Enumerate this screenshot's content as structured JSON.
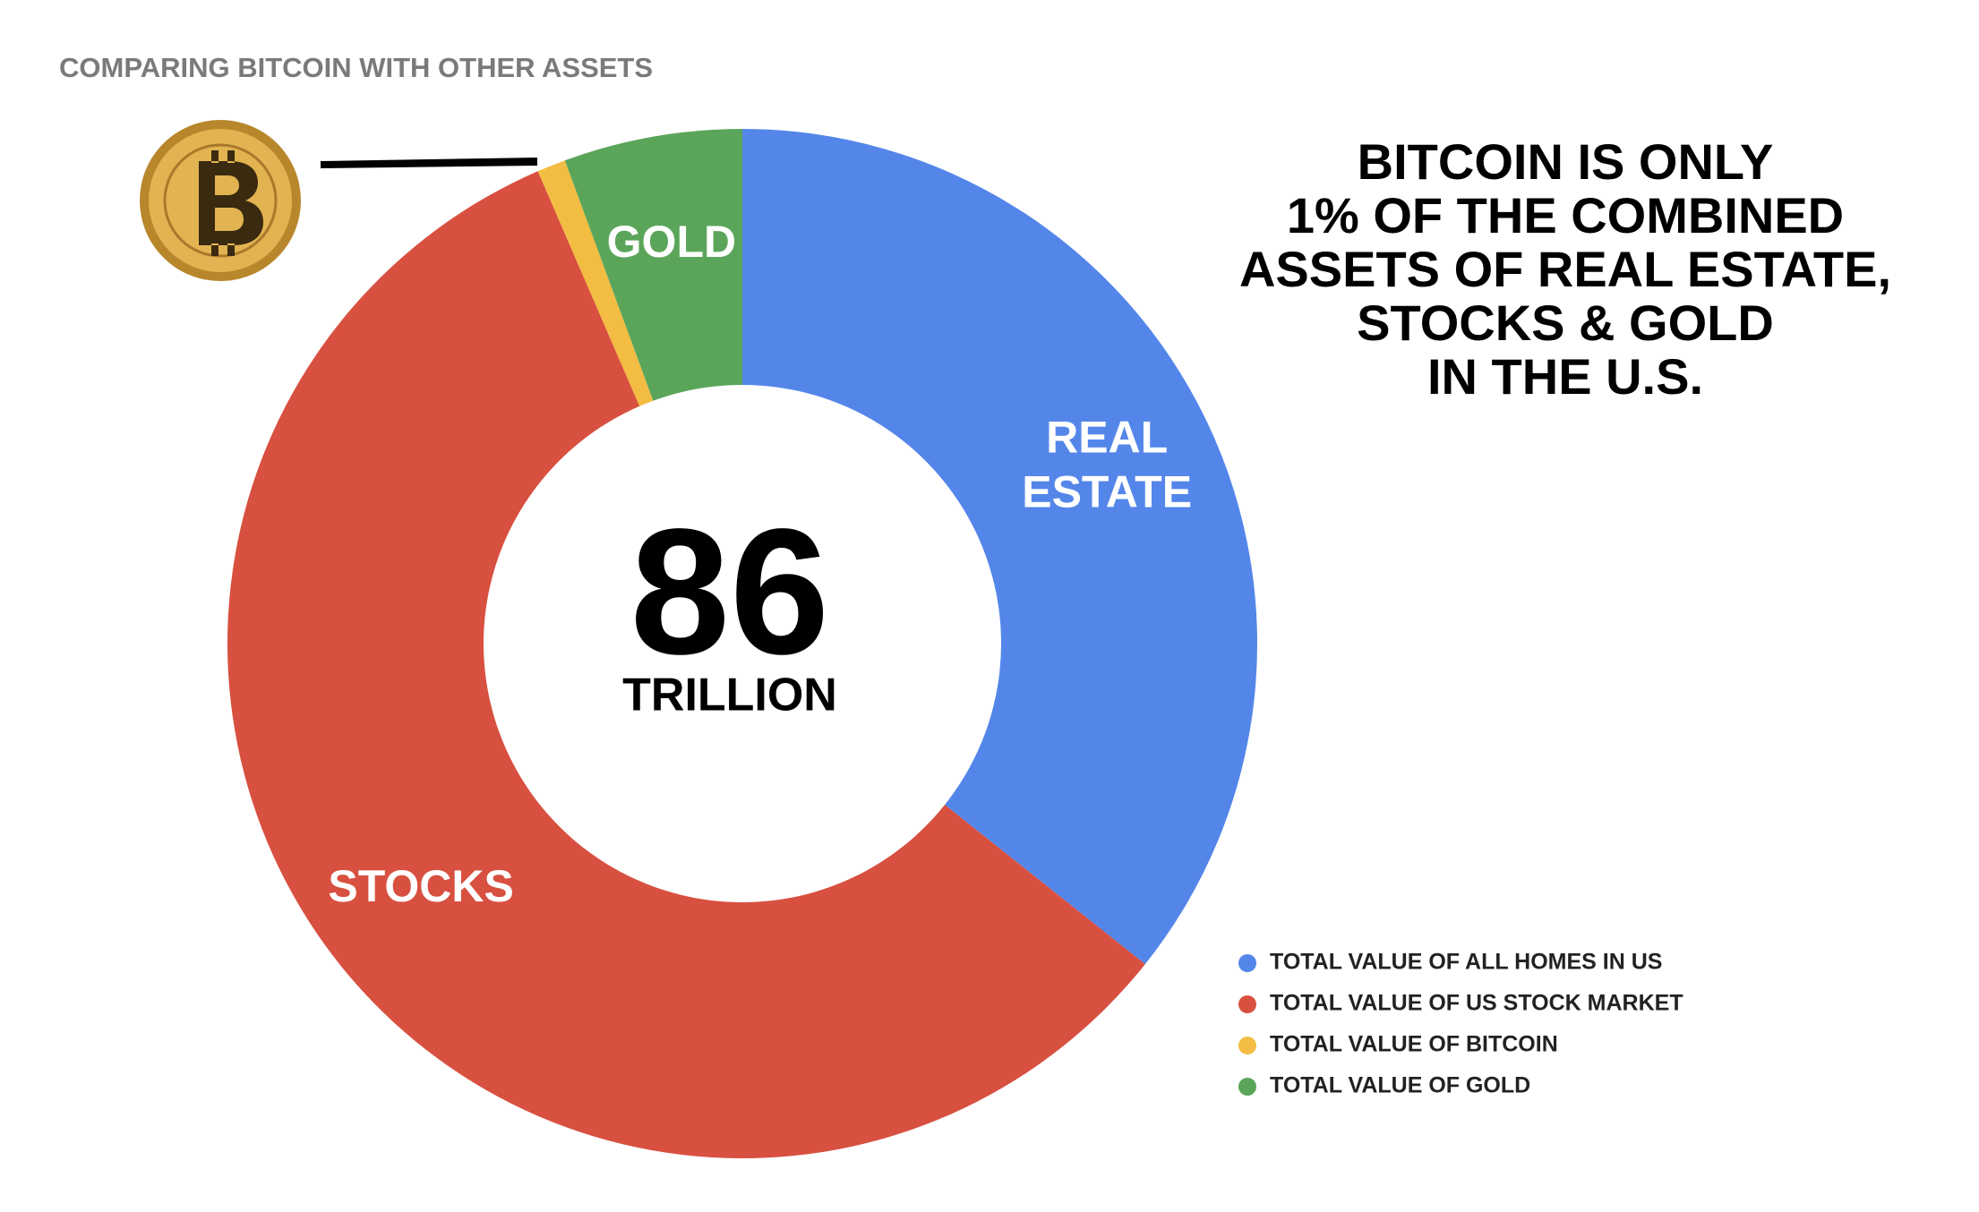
{
  "chart_data": {
    "type": "donut",
    "title": "COMPARING BITCOIN WITH OTHER ASSETS",
    "series": [
      {
        "name": "TOTAL VALUE OF ALL HOMES IN US",
        "color": "#5486ea",
        "values": [
          35.7
        ]
      },
      {
        "name": "TOTAL VALUE OF US STOCK MARKET",
        "color": "#d85040",
        "values": [
          57.8
        ]
      },
      {
        "name": "TOTAL VALUE OF BITCOIN",
        "color": "#f2bd42",
        "values": [
          0.9
        ]
      },
      {
        "name": "TOTAL VALUE OF GOLD",
        "color": "#5ba55b",
        "values": [
          5.6
        ]
      }
    ],
    "slice_labels": [
      [
        "REAL",
        "ESTATE"
      ],
      [
        "STOCKS"
      ],
      null,
      [
        "GOLD"
      ]
    ],
    "center_value": "86",
    "center_unit": "TRILLION",
    "headline": [
      "BITCOIN IS ONLY",
      "1% OF THE COMBINED",
      "ASSETS OF REAL ESTATE,",
      "STOCKS & GOLD",
      "IN THE U.S."
    ],
    "legend": "right-bottom"
  }
}
